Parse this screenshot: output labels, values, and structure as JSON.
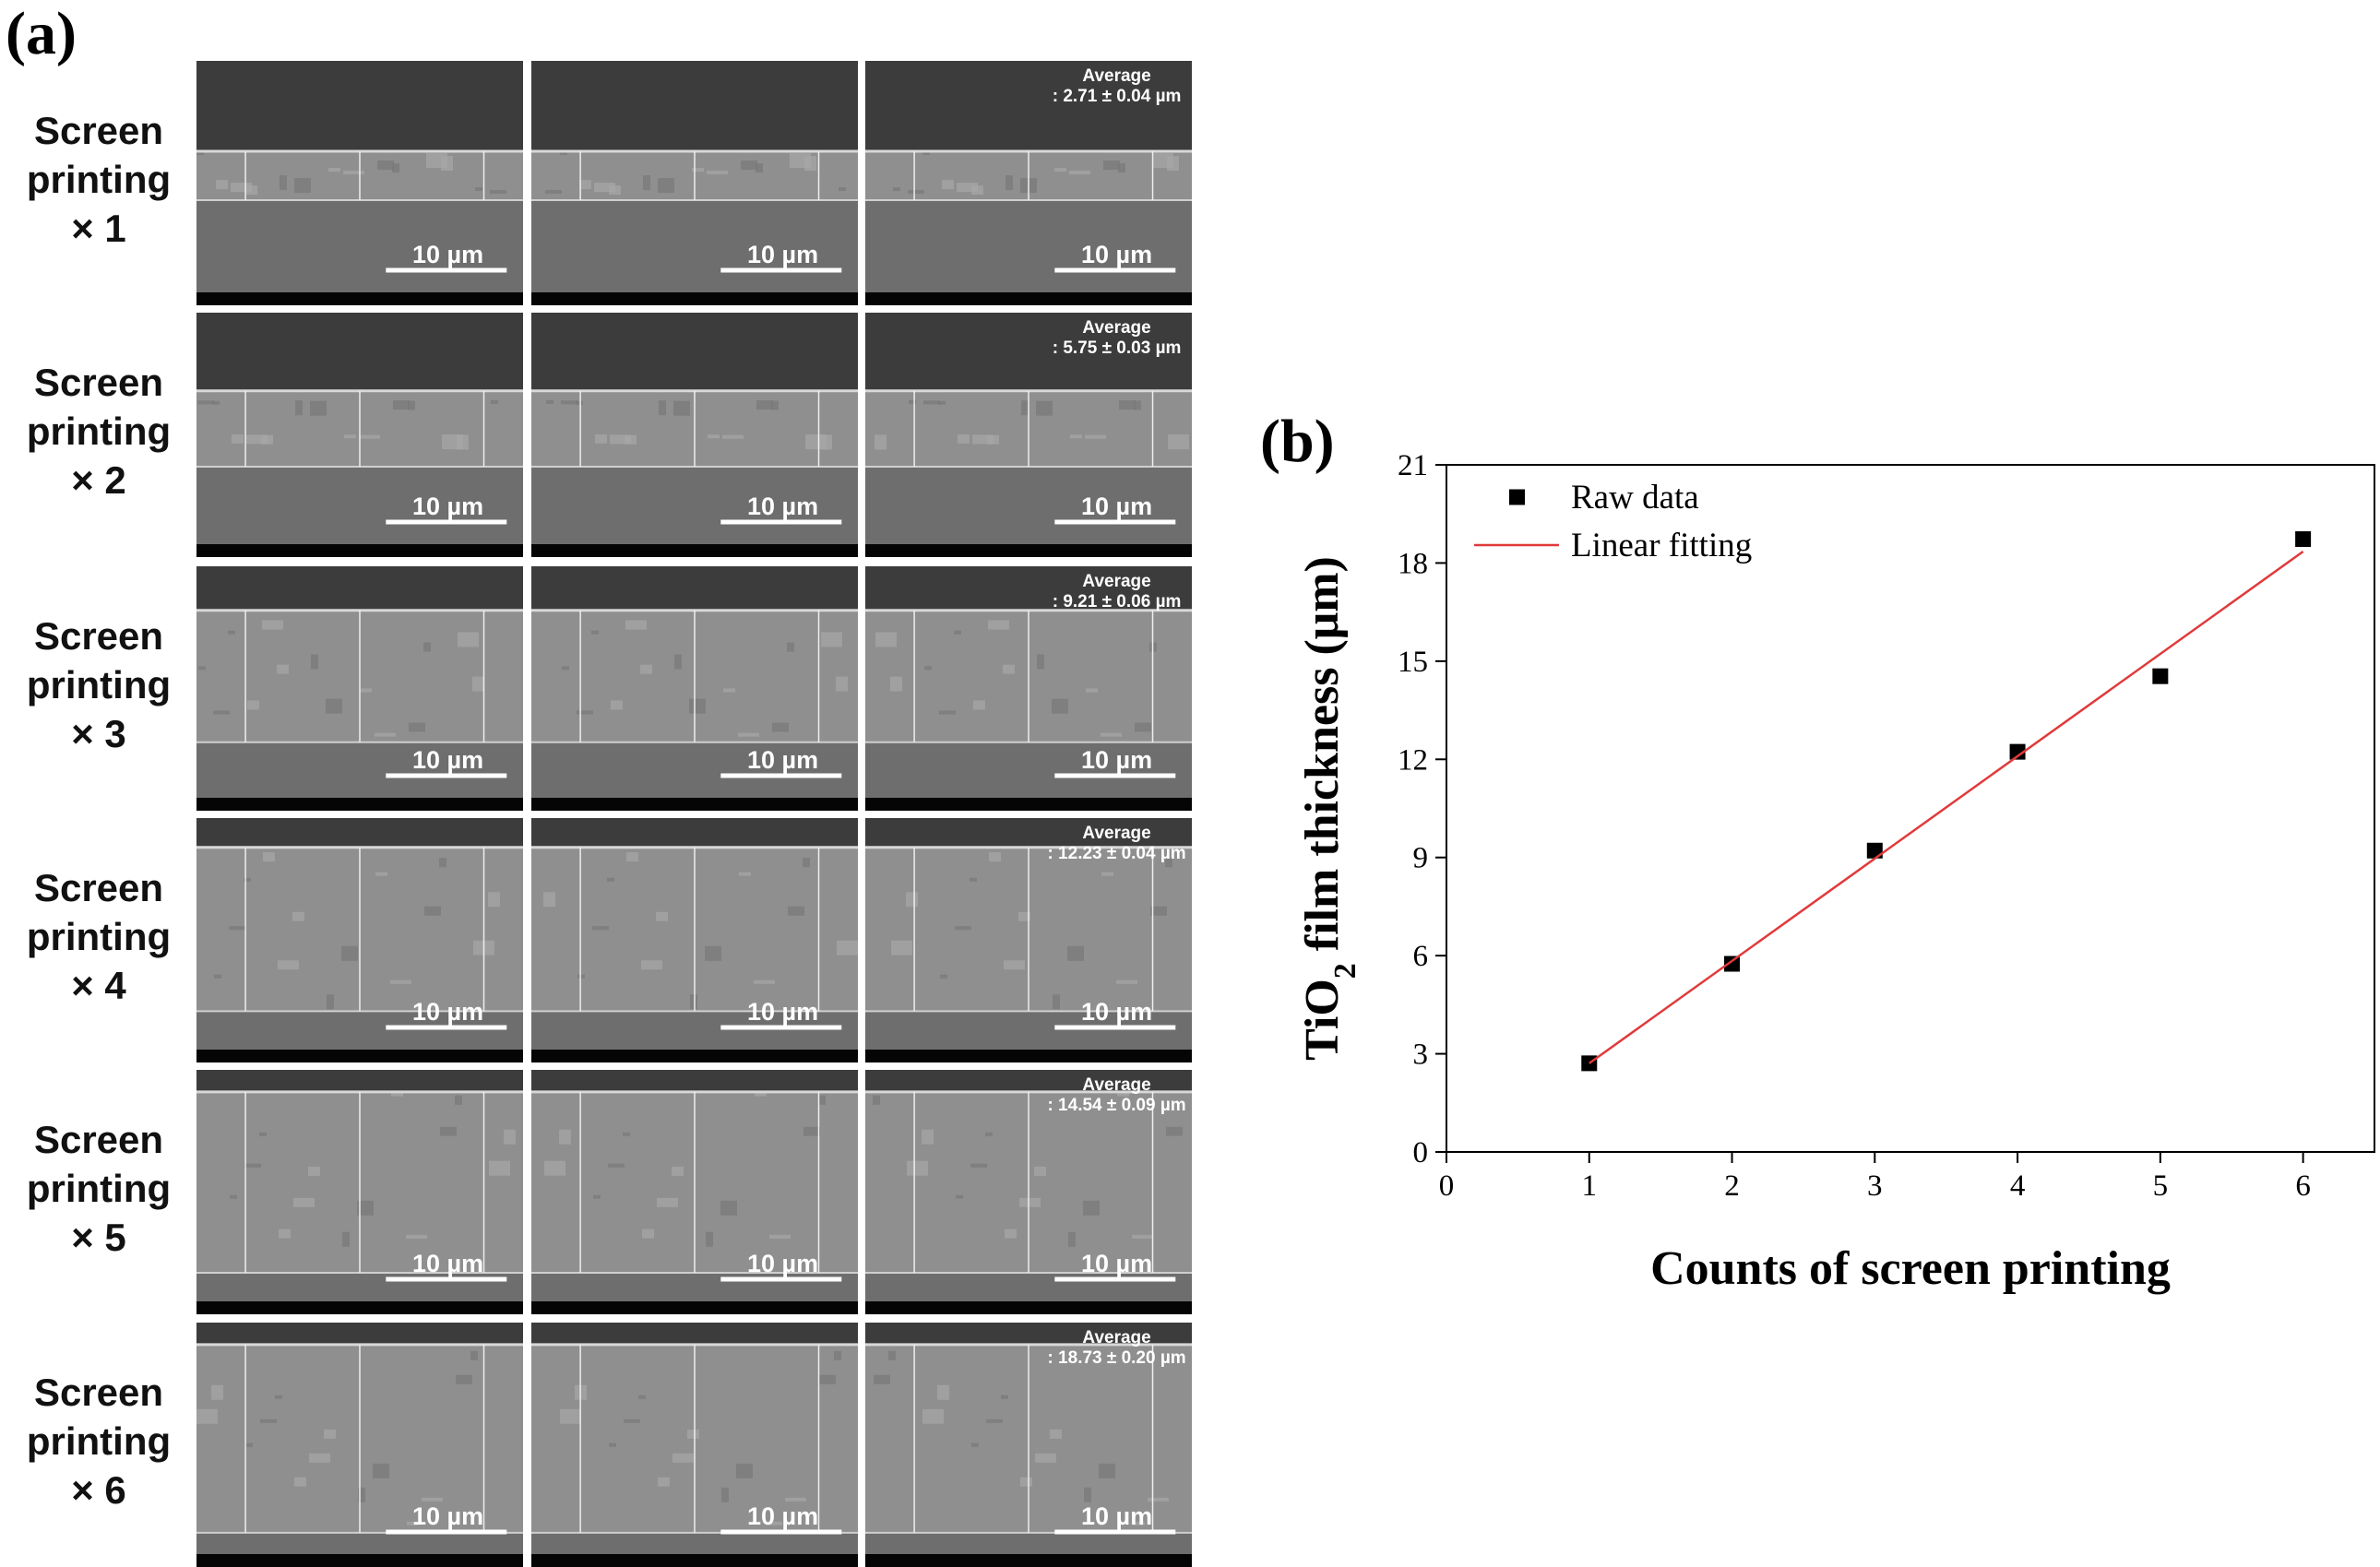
{
  "panel_a": {
    "label": "(a)",
    "scale_bar": "10 µm",
    "average_title": "Average",
    "rows": [
      {
        "lines": [
          "Screen",
          "printing",
          "× 1"
        ],
        "average": ": 2.71 ± 0.04 µm"
      },
      {
        "lines": [
          "Screen",
          "printing",
          "× 2"
        ],
        "average": ": 5.75 ± 0.03 µm"
      },
      {
        "lines": [
          "Screen",
          "printing",
          "× 3"
        ],
        "average": ": 9.21 ± 0.06 µm"
      },
      {
        "lines": [
          "Screen",
          "printing",
          "× 4"
        ],
        "average": ": 12.23 ± 0.04 µm"
      },
      {
        "lines": [
          "Screen",
          "printing",
          "× 5"
        ],
        "average": ": 14.54 ± 0.09 µm"
      },
      {
        "lines": [
          "Screen",
          "printing",
          "× 6"
        ],
        "average": ": 18.73 ± 0.20 µm"
      }
    ]
  },
  "chart_data": {
    "type": "scatter",
    "panel_label": "(b)",
    "xlabel": "Counts of screen printing",
    "ylabel_parts": [
      "TiO",
      "2",
      " film thickness (μm)"
    ],
    "xlim": [
      0,
      6.5
    ],
    "xticks": [
      0,
      1,
      2,
      3,
      4,
      5,
      6
    ],
    "ylim": [
      0,
      21
    ],
    "yticks": [
      0,
      3,
      6,
      9,
      12,
      15,
      18,
      21
    ],
    "legend": "upper left",
    "series": [
      {
        "name": "Raw data",
        "kind": "points",
        "color": "#000000",
        "x": [
          1,
          2,
          3,
          4,
          5,
          6
        ],
        "values": [
          2.71,
          5.75,
          9.21,
          12.23,
          14.54,
          18.73
        ]
      },
      {
        "name": "Linear fitting",
        "kind": "line",
        "color": "#e03a3a",
        "x": [
          1,
          6
        ],
        "values": [
          2.71,
          18.35
        ]
      }
    ]
  }
}
